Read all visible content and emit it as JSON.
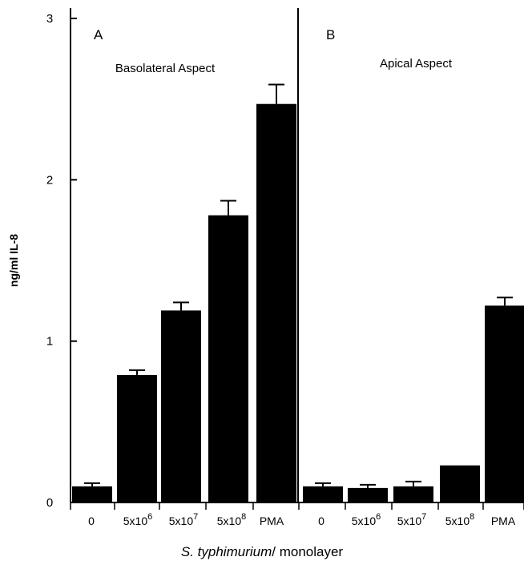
{
  "chart_data": {
    "type": "bar",
    "ylabel": "ng/ml IL-8",
    "xlabel_italic": "S. typhimurium",
    "xlabel_rest": "/ monolayer",
    "ylim": [
      0,
      3
    ],
    "yticks": [
      "0",
      "1",
      "2",
      "3"
    ],
    "grid": false,
    "panels": [
      {
        "letter": "A",
        "title": "Basolateral Aspect",
        "categories": [
          {
            "label": "0"
          },
          {
            "label": "5x10",
            "sup": "6"
          },
          {
            "label": "5x10",
            "sup": "7"
          },
          {
            "label": "5x10",
            "sup": "8"
          },
          {
            "label": "PMA"
          }
        ],
        "values": [
          0.1,
          0.79,
          1.19,
          1.78,
          2.47
        ],
        "errors": [
          0.02,
          0.03,
          0.05,
          0.09,
          0.12
        ]
      },
      {
        "letter": "B",
        "title": "Apical Aspect",
        "categories": [
          {
            "label": "0"
          },
          {
            "label": "5x10",
            "sup": "6"
          },
          {
            "label": "5x10",
            "sup": "7"
          },
          {
            "label": "5x10",
            "sup": "8"
          },
          {
            "label": "PMA"
          }
        ],
        "values": [
          0.1,
          0.09,
          0.1,
          0.23,
          1.22
        ],
        "errors": [
          0.02,
          0.02,
          0.03,
          0.0,
          0.05
        ]
      }
    ]
  }
}
